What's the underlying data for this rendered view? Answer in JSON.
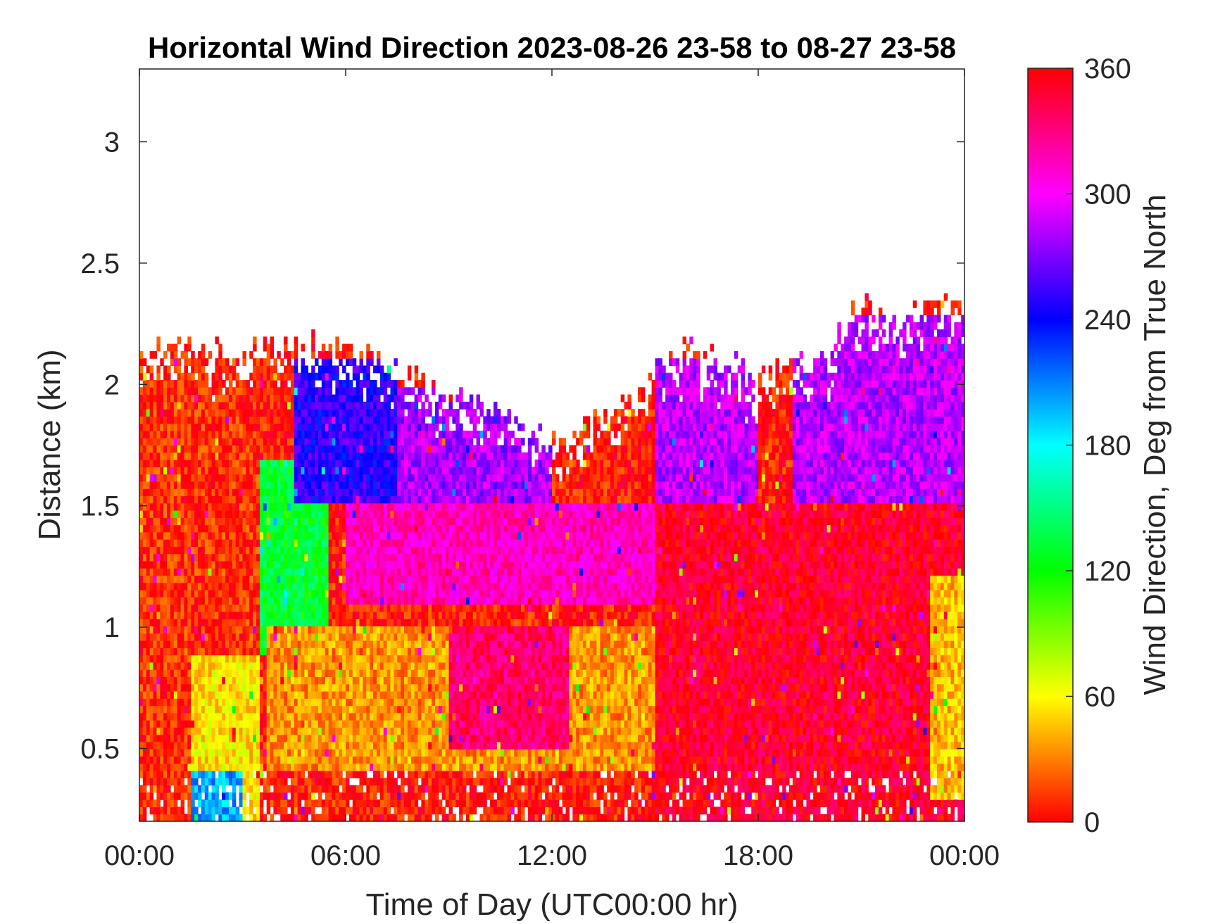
{
  "chart_data": {
    "type": "heatmap",
    "title": "Horizontal Wind Direction 2023-08-26 23-58 to 08-27 23-58",
    "xlabel": "Time of Day (UTC00:00 hr)",
    "ylabel": "Distance (km)",
    "x_ticks": [
      "00:00",
      "06:00",
      "12:00",
      "18:00",
      "00:00"
    ],
    "x_tick_hours": [
      0,
      6,
      12,
      18,
      24
    ],
    "xlim_hours": [
      0,
      24
    ],
    "y_ticks": [
      "0.5",
      "1",
      "1.5",
      "2",
      "2.5",
      "3"
    ],
    "y_tick_values": [
      0.5,
      1.0,
      1.5,
      2.0,
      2.5,
      3.0
    ],
    "ylim": [
      0.2,
      3.3
    ],
    "colorbar": {
      "label": "Wind Direction, Deg from True North",
      "ticks": [
        "0",
        "60",
        "120",
        "180",
        "240",
        "300",
        "360"
      ],
      "tick_values": [
        0,
        60,
        120,
        180,
        240,
        300,
        360
      ],
      "range": [
        0,
        360
      ],
      "colormap": "hsv"
    },
    "data_top_km": [
      {
        "hour": 0.0,
        "top": 2.12
      },
      {
        "hour": 1.0,
        "top": 2.18
      },
      {
        "hour": 2.0,
        "top": 2.15
      },
      {
        "hour": 3.0,
        "top": 2.12
      },
      {
        "hour": 4.0,
        "top": 2.2
      },
      {
        "hour": 5.0,
        "top": 2.18
      },
      {
        "hour": 6.0,
        "top": 2.15
      },
      {
        "hour": 7.0,
        "top": 2.08
      },
      {
        "hour": 8.0,
        "top": 2.02
      },
      {
        "hour": 9.0,
        "top": 1.98
      },
      {
        "hour": 10.0,
        "top": 1.95
      },
      {
        "hour": 11.0,
        "top": 1.85
      },
      {
        "hour": 12.0,
        "top": 1.75
      },
      {
        "hour": 13.0,
        "top": 1.82
      },
      {
        "hour": 14.0,
        "top": 1.9
      },
      {
        "hour": 15.0,
        "top": 2.05
      },
      {
        "hour": 16.0,
        "top": 2.15
      },
      {
        "hour": 17.0,
        "top": 2.08
      },
      {
        "hour": 18.0,
        "top": 2.05
      },
      {
        "hour": 19.0,
        "top": 2.1
      },
      {
        "hour": 20.0,
        "top": 2.12
      },
      {
        "hour": 21.0,
        "top": 2.35
      },
      {
        "hour": 22.0,
        "top": 2.3
      },
      {
        "hour": 23.0,
        "top": 2.3
      },
      {
        "hour": 24.0,
        "top": 2.35
      }
    ],
    "direction_regimes_deg": [
      {
        "hours": [
          0,
          3.5
        ],
        "km": [
          0.2,
          2.2
        ],
        "direction": 10
      },
      {
        "hours": [
          1.5,
          3.5
        ],
        "km": [
          0.2,
          0.9
        ],
        "direction": 55
      },
      {
        "hours": [
          1.5,
          3.0
        ],
        "km": [
          0.2,
          0.4
        ],
        "direction": 200
      },
      {
        "hours": [
          3.5,
          5.5
        ],
        "km": [
          0.9,
          1.7
        ],
        "direction": 130
      },
      {
        "hours": [
          4.5,
          7.5
        ],
        "km": [
          1.5,
          2.1
        ],
        "direction": 250
      },
      {
        "hours": [
          7.5,
          12.0
        ],
        "km": [
          1.5,
          2.0
        ],
        "direction": 280
      },
      {
        "hours": [
          6.0,
          15.0
        ],
        "km": [
          1.1,
          1.5
        ],
        "direction": 315
      },
      {
        "hours": [
          3.7,
          15.0
        ],
        "km": [
          0.4,
          1.0
        ],
        "direction": 35
      },
      {
        "hours": [
          9.0,
          12.5
        ],
        "km": [
          0.5,
          1.0
        ],
        "direction": 335
      },
      {
        "hours": [
          15.0,
          18.0
        ],
        "km": [
          1.5,
          2.1
        ],
        "direction": 285
      },
      {
        "hours": [
          15.0,
          24.0
        ],
        "km": [
          0.2,
          1.5
        ],
        "direction": 350
      },
      {
        "hours": [
          19.0,
          24.0
        ],
        "km": [
          1.5,
          2.3
        ],
        "direction": 285
      },
      {
        "hours": [
          23.0,
          24.0
        ],
        "km": [
          0.3,
          1.2
        ],
        "direction": 45
      }
    ]
  }
}
